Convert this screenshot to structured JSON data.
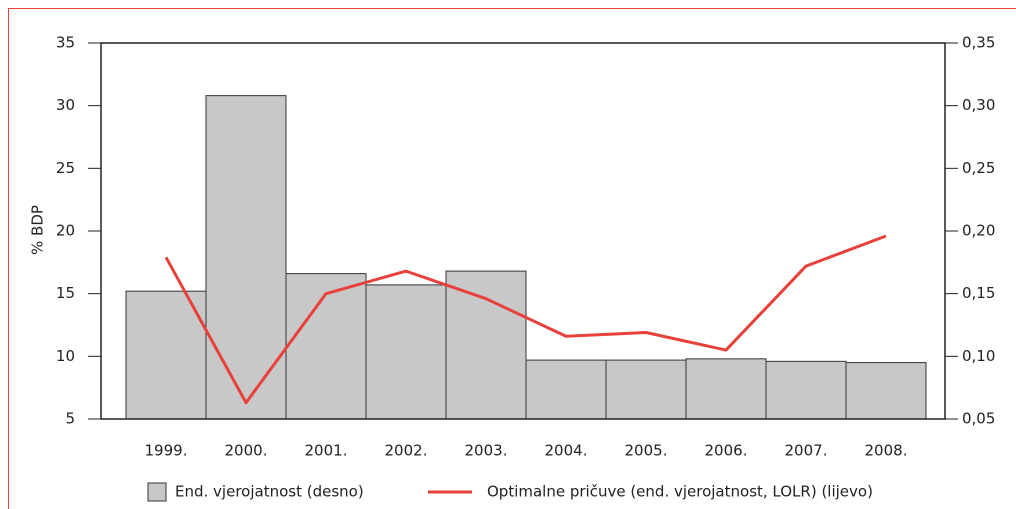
{
  "chart_data": {
    "type": "bar_line",
    "y_label": "% BDP",
    "categories": [
      "1999.",
      "2000.",
      "2001.",
      "2002.",
      "2003.",
      "2004.",
      "2005.",
      "2006.",
      "2007.",
      "2008."
    ],
    "series": [
      {
        "name": "End. vjerojatnost (desno)",
        "type": "bar",
        "axis": "y2",
        "color": "#c8c8c8",
        "values": [
          0.152,
          0.308,
          0.166,
          0.157,
          0.168,
          0.097,
          0.097,
          0.098,
          0.096,
          0.095
        ]
      },
      {
        "name": "Optimalne pričuve (end. vjerojatnost, LOLR) (lijevo)",
        "type": "line",
        "axis": "y",
        "color": "#e8403a",
        "values": [
          17.9,
          6.3,
          15.0,
          16.8,
          14.6,
          11.6,
          11.9,
          10.5,
          17.2,
          19.6
        ]
      }
    ],
    "ylim": [
      5,
      35
    ],
    "yticks": [
      5,
      10,
      15,
      20,
      25,
      30,
      35
    ],
    "y2lim": [
      0.05,
      0.35
    ],
    "y2ticks": [
      {
        "value": 0.05,
        "label": "0,05"
      },
      {
        "value": 0.1,
        "label": "0,10"
      },
      {
        "value": 0.15,
        "label": "0,15"
      },
      {
        "value": 0.2,
        "label": "0,20"
      },
      {
        "value": 0.25,
        "label": "0,25"
      },
      {
        "value": 0.3,
        "label": "0,30"
      },
      {
        "value": 0.35,
        "label": "0,35"
      }
    ],
    "legend": "bottom"
  }
}
